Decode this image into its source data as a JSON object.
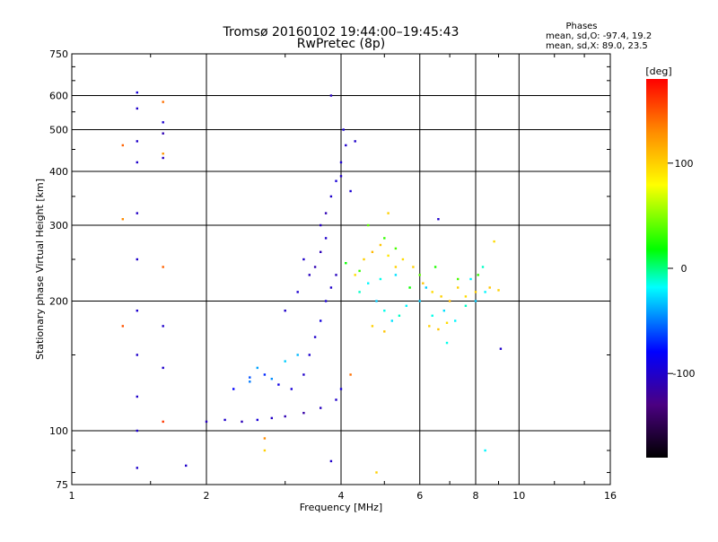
{
  "chart_data": {
    "type": "scatter",
    "title": "Tromsø 20160102 19:44:00–19:45:43",
    "subtitle": "RwPretec (8p)",
    "xlabel": "Frequency [MHz]",
    "ylabel": "Stationary phase Virtual Height [km]",
    "x_scale": "log2",
    "y_scale": "log",
    "xlim": [
      1,
      16
    ],
    "ylim": [
      75,
      750
    ],
    "xticks": [
      {
        "value": 1,
        "label": "1"
      },
      {
        "value": 2,
        "label": "2"
      },
      {
        "value": 4,
        "label": "4"
      },
      {
        "value": 6,
        "label": "6"
      },
      {
        "value": 8,
        "label": "8"
      },
      {
        "value": 10,
        "label": "10"
      },
      {
        "value": 16,
        "label": "16"
      }
    ],
    "yticks": [
      {
        "value": 75,
        "label": "75"
      },
      {
        "value": 100,
        "label": "100"
      },
      {
        "value": 200,
        "label": "200"
      },
      {
        "value": 300,
        "label": "300"
      },
      {
        "value": 400,
        "label": "400"
      },
      {
        "value": 500,
        "label": "500"
      },
      {
        "value": 600,
        "label": "600"
      },
      {
        "value": 750,
        "label": "750"
      }
    ],
    "grid": true,
    "phase_info": {
      "heading": "Phases",
      "line_o": "mean, sd,O: -97.4, 19.2",
      "line_x": "mean, sd,X:  89.0, 23.5"
    },
    "colorbar": {
      "label": "[deg]",
      "range": [
        -180,
        180
      ],
      "ticks": [
        {
          "value": 100,
          "label": "100"
        },
        {
          "value": 0,
          "label": "0"
        },
        {
          "value": -100,
          "label": "-100"
        }
      ],
      "stops": [
        "#000000",
        "#4b0082",
        "#0000ff",
        "#00ffff",
        "#00ff00",
        "#ffff00",
        "#ff8c00",
        "#ff0000"
      ]
    },
    "series": [
      {
        "points": [
          [
            2.0,
            105,
            -105
          ],
          [
            2.2,
            106,
            -100
          ],
          [
            2.4,
            105,
            -108
          ],
          [
            2.6,
            106,
            -95
          ],
          [
            2.8,
            107,
            -102
          ],
          [
            3.0,
            108,
            -110
          ],
          [
            3.3,
            110,
            -115
          ],
          [
            3.6,
            113,
            -105
          ],
          [
            3.9,
            118,
            -100
          ],
          [
            4.0,
            125,
            -95
          ],
          [
            2.3,
            125,
            -80
          ],
          [
            2.5,
            133,
            -60
          ],
          [
            2.7,
            135,
            -70
          ],
          [
            2.9,
            128,
            -90
          ],
          [
            3.1,
            125,
            -95
          ],
          [
            3.3,
            135,
            -100
          ],
          [
            3.4,
            150,
            -98
          ],
          [
            3.5,
            165,
            -100
          ],
          [
            3.6,
            180,
            -92
          ],
          [
            3.7,
            200,
            -96
          ],
          [
            3.8,
            215,
            -100
          ],
          [
            3.9,
            230,
            -105
          ],
          [
            3.5,
            240,
            -110
          ],
          [
            3.6,
            260,
            -108
          ],
          [
            3.7,
            280,
            -100
          ],
          [
            3.6,
            300,
            -105
          ],
          [
            3.7,
            320,
            -110
          ],
          [
            3.8,
            350,
            -100
          ],
          [
            3.9,
            380,
            -95
          ],
          [
            4.0,
            420,
            -98
          ],
          [
            4.1,
            460,
            -100
          ],
          [
            4.05,
            500,
            -95
          ],
          [
            4.3,
            470,
            -100
          ],
          [
            4.0,
            390,
            -102
          ],
          [
            4.2,
            360,
            -96
          ],
          [
            3.3,
            250,
            -100
          ],
          [
            3.4,
            230,
            -105
          ],
          [
            3.2,
            210,
            -98
          ],
          [
            3.0,
            190,
            -100
          ],
          [
            3.8,
            600,
            -105
          ],
          [
            1.4,
            610,
            -95
          ],
          [
            1.4,
            560,
            -100
          ],
          [
            1.6,
            520,
            -98
          ],
          [
            1.6,
            490,
            -110
          ],
          [
            1.4,
            470,
            -100
          ],
          [
            1.6,
            430,
            -105
          ],
          [
            1.4,
            420,
            -100
          ],
          [
            1.4,
            320,
            -102
          ],
          [
            1.4,
            250,
            -100
          ],
          [
            1.4,
            190,
            -98
          ],
          [
            1.4,
            150,
            -100
          ],
          [
            1.4,
            120,
            -100
          ],
          [
            1.4,
            100,
            -98
          ],
          [
            1.4,
            82,
            -100
          ],
          [
            1.6,
            140,
            -100
          ],
          [
            1.6,
            175,
            -100
          ],
          [
            1.8,
            83,
            -100
          ],
          [
            3.8,
            85,
            -100
          ],
          [
            6.6,
            310,
            -100
          ],
          [
            9.1,
            155,
            -100
          ]
        ]
      },
      {
        "points": [
          [
            4.4,
            210,
            -10
          ],
          [
            4.6,
            220,
            -20
          ],
          [
            4.8,
            200,
            -30
          ],
          [
            5.0,
            190,
            -15
          ],
          [
            5.2,
            180,
            -25
          ],
          [
            5.4,
            185,
            -10
          ],
          [
            5.6,
            195,
            -20
          ],
          [
            6.0,
            200,
            -30
          ],
          [
            6.4,
            185,
            -15
          ],
          [
            6.8,
            190,
            -25
          ],
          [
            7.2,
            180,
            -20
          ],
          [
            7.6,
            195,
            -10
          ],
          [
            8.0,
            200,
            -30
          ],
          [
            8.4,
            210,
            -20
          ],
          [
            4.9,
            225,
            -15
          ],
          [
            5.3,
            230,
            -25
          ],
          [
            6.2,
            215,
            -30
          ],
          [
            7.8,
            225,
            -20
          ],
          [
            8.3,
            240,
            -10
          ],
          [
            6.9,
            160,
            -15
          ],
          [
            2.6,
            140,
            -40
          ],
          [
            2.8,
            132,
            -45
          ],
          [
            3.0,
            145,
            -30
          ],
          [
            3.2,
            150,
            -35
          ],
          [
            2.5,
            130,
            -50
          ],
          [
            8.4,
            90,
            -20
          ]
        ]
      },
      {
        "points": [
          [
            4.3,
            230,
            95
          ],
          [
            4.5,
            250,
            100
          ],
          [
            4.7,
            260,
            110
          ],
          [
            4.9,
            270,
            105
          ],
          [
            5.1,
            255,
            90
          ],
          [
            5.3,
            240,
            100
          ],
          [
            5.5,
            250,
            95
          ],
          [
            5.8,
            240,
            100
          ],
          [
            6.1,
            220,
            105
          ],
          [
            6.4,
            210,
            95
          ],
          [
            6.7,
            205,
            100
          ],
          [
            7.0,
            200,
            110
          ],
          [
            7.3,
            215,
            100
          ],
          [
            7.6,
            205,
            95
          ],
          [
            8.0,
            210,
            100
          ],
          [
            8.6,
            215,
            105
          ],
          [
            9.0,
            212,
            100
          ],
          [
            6.3,
            175,
            100
          ],
          [
            6.6,
            172,
            105
          ],
          [
            6.9,
            178,
            95
          ],
          [
            5.1,
            320,
            100
          ],
          [
            8.8,
            275,
            95
          ],
          [
            4.7,
            175,
            100
          ],
          [
            5.0,
            170,
            105
          ],
          [
            4.8,
            80,
            100
          ],
          [
            2.7,
            90,
            100
          ]
        ]
      },
      {
        "points": [
          [
            4.6,
            300,
            40
          ],
          [
            5.0,
            280,
            30
          ],
          [
            5.3,
            265,
            35
          ],
          [
            4.1,
            245,
            20
          ],
          [
            4.4,
            235,
            30
          ],
          [
            6.0,
            230,
            40
          ],
          [
            6.5,
            240,
            25
          ],
          [
            7.3,
            225,
            35
          ],
          [
            8.1,
            230,
            30
          ],
          [
            5.7,
            215,
            20
          ]
        ]
      },
      {
        "points": [
          [
            1.3,
            460,
            145
          ],
          [
            1.3,
            310,
            130
          ],
          [
            1.3,
            175,
            150
          ],
          [
            1.6,
            580,
            140
          ],
          [
            1.6,
            440,
            125
          ],
          [
            1.6,
            240,
            145
          ],
          [
            1.6,
            105,
            160
          ],
          [
            4.2,
            135,
            140
          ],
          [
            2.7,
            96,
            130
          ]
        ]
      }
    ]
  }
}
